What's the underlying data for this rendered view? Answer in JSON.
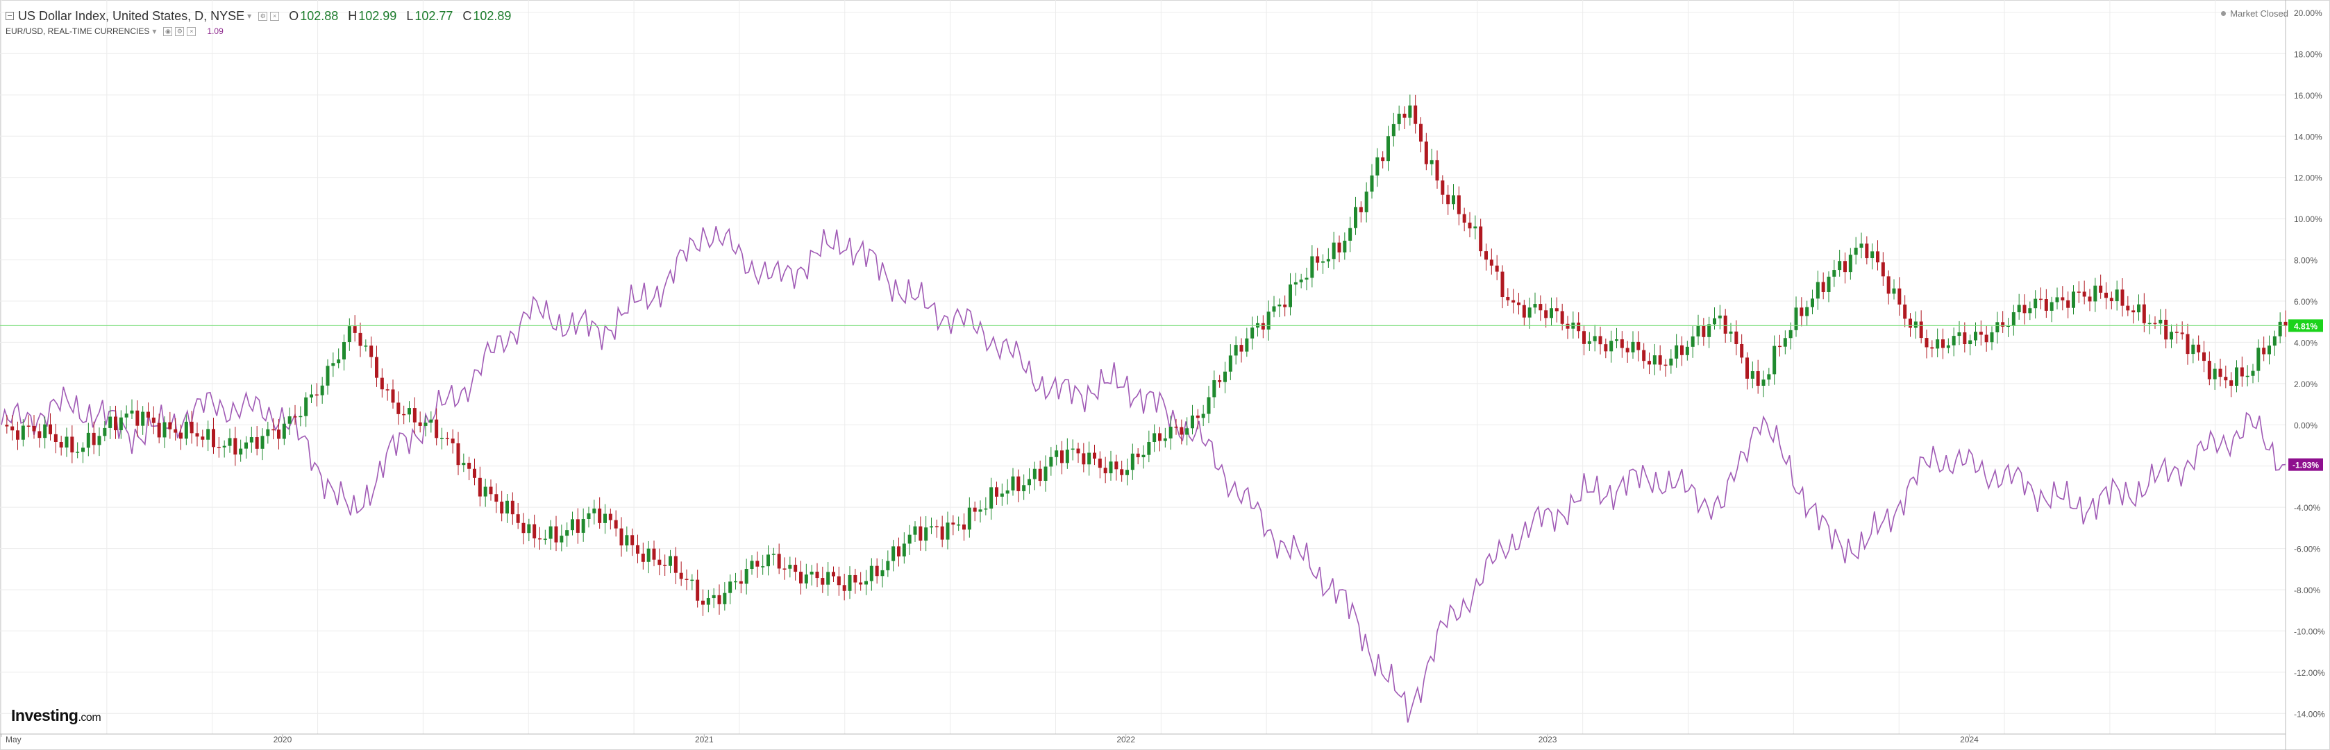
{
  "legend": {
    "primary": {
      "title": "US Dollar Index, United States, D, NYSE",
      "open_label": "O",
      "open": "102.88",
      "high_label": "H",
      "high": "102.99",
      "low_label": "L",
      "low": "102.77",
      "close_label": "C",
      "close": "102.89"
    },
    "secondary": {
      "title": "EUR/USD, REAL-TIME CURRENCIES",
      "value": "1.09"
    }
  },
  "market_status": "Market Closed",
  "watermark": {
    "brand": "Investing",
    "suffix": ".com"
  },
  "colors": {
    "up": "#1f8a2e",
    "down": "#b01820",
    "secondary_line": "#a05ab5",
    "last_price_line": "#7fdf7f",
    "dxy_badge": "#1bd31b",
    "eurusd_badge": "#8e0f8e",
    "grid": "#ececec"
  },
  "chart_data": {
    "type": "line",
    "title": "US Dollar Index, United States, D, NYSE",
    "x_ticks": [
      "May",
      "2020",
      "2021",
      "2022",
      "2023",
      "2024"
    ],
    "x_tick_dates": [
      "2019-05",
      "2020-01",
      "2021-01",
      "2022-01",
      "2023-01",
      "2024-01"
    ],
    "x_range": [
      "2019-05",
      "2024-10"
    ],
    "y_unit": "percent change",
    "ylim": [
      -15,
      20
    ],
    "y_ticks": [
      "20.00%",
      "18.00%",
      "16.00%",
      "14.00%",
      "12.00%",
      "10.00%",
      "8.00%",
      "6.00%",
      "4.00%",
      "2.00%",
      "0.00%",
      "-2.00%",
      "-4.00%",
      "-6.00%",
      "-8.00%",
      "-10.00%",
      "-12.00%",
      "-14.00%"
    ],
    "grid": true,
    "series": [
      {
        "name": "US Dollar Index",
        "style": "candlestick",
        "last_value_label": "4.81%",
        "x": [
          "2019-05",
          "2019-07",
          "2019-09",
          "2019-11",
          "2020-01",
          "2020-03",
          "2020-04",
          "2020-06",
          "2020-08",
          "2020-10",
          "2020-12",
          "2021-01",
          "2021-03",
          "2021-05",
          "2021-07",
          "2021-09",
          "2021-11",
          "2022-01",
          "2022-03",
          "2022-05",
          "2022-07",
          "2022-09",
          "2022-10",
          "2022-12",
          "2023-02",
          "2023-04",
          "2023-06",
          "2023-07",
          "2023-09",
          "2023-10",
          "2023-12",
          "2024-02",
          "2024-04",
          "2024-06",
          "2024-08",
          "2024-09",
          "2024-10"
        ],
        "values": [
          0.0,
          -1.0,
          0.5,
          -1.0,
          -0.5,
          4.5,
          1.5,
          -1.5,
          -5.5,
          -4.5,
          -7.0,
          -8.5,
          -6.5,
          -8.0,
          -5.5,
          -4.0,
          -1.5,
          -2.0,
          0.5,
          5.5,
          8.5,
          15.5,
          11.5,
          6.0,
          4.5,
          3.0,
          5.0,
          2.0,
          7.5,
          8.5,
          3.5,
          5.0,
          6.5,
          5.5,
          2.5,
          2.5,
          4.81
        ]
      },
      {
        "name": "EUR/USD",
        "style": "line",
        "last_value_label": "-1.93%",
        "x": [
          "2019-05",
          "2019-07",
          "2019-09",
          "2019-11",
          "2020-01",
          "2020-03",
          "2020-04",
          "2020-06",
          "2020-08",
          "2020-10",
          "2020-12",
          "2021-01",
          "2021-03",
          "2021-05",
          "2021-07",
          "2021-09",
          "2021-11",
          "2022-01",
          "2022-03",
          "2022-05",
          "2022-07",
          "2022-09",
          "2022-10",
          "2022-12",
          "2023-02",
          "2023-04",
          "2023-06",
          "2023-07",
          "2023-09",
          "2023-10",
          "2023-12",
          "2024-02",
          "2024-04",
          "2024-06",
          "2024-08",
          "2024-09",
          "2024-10"
        ],
        "values": [
          0.0,
          1.0,
          -0.5,
          1.0,
          0.5,
          -4.5,
          -1.5,
          1.5,
          5.5,
          4.5,
          7.0,
          9.5,
          7.0,
          9.0,
          6.0,
          4.5,
          1.5,
          2.0,
          -0.5,
          -5.0,
          -8.0,
          -14.0,
          -10.0,
          -5.5,
          -3.5,
          -2.5,
          -4.0,
          0.5,
          -5.5,
          -6.0,
          -1.5,
          -2.5,
          -4.0,
          -3.0,
          -1.0,
          0.0,
          -1.93
        ]
      }
    ]
  }
}
